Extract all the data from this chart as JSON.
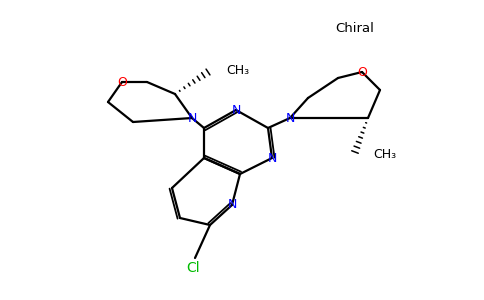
{
  "bg_color": "#ffffff",
  "bond_color": "#000000",
  "n_color": "#0000ff",
  "o_color": "#ff0000",
  "cl_color": "#00bb00",
  "chiral_text": "Chiral",
  "ch3_label": "CH₃",
  "o_label": "O",
  "n_label": "N",
  "cl_label": "Cl",
  "figsize": [
    4.84,
    3.0
  ],
  "dpi": 100
}
